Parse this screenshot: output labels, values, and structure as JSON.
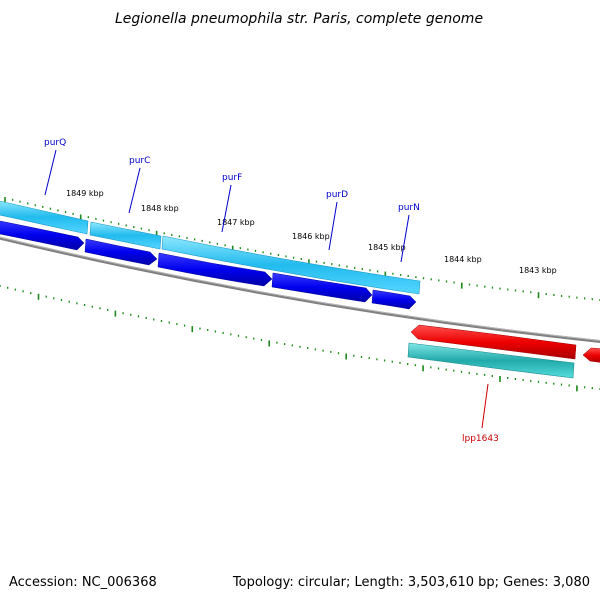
{
  "header": {
    "title": "Legionella pneumophila str. Paris, complete genome"
  },
  "footer": {
    "accession": "Accession: NC_006368",
    "summary": "Topology: circular; Length: 3,503,610 bp; Genes: 3,080"
  },
  "map": {
    "tick_labels": [
      "1849 kbp",
      "1848 kbp",
      "1847 kbp",
      "1846 kbp",
      "1845 kbp",
      "1844 kbp",
      "1843 kbp"
    ],
    "genes": [
      {
        "label": "purQ",
        "strand": "forward"
      },
      {
        "label": "purC",
        "strand": "forward"
      },
      {
        "label": "purF",
        "strand": "forward"
      },
      {
        "label": "purD",
        "strand": "forward"
      },
      {
        "label": "purN",
        "strand": "forward"
      },
      {
        "label": "lpp1643",
        "strand": "reverse"
      }
    ],
    "colors": {
      "forward_cds": "#0000ee",
      "forward_feature": "#33ccff",
      "reverse_cds": "#ee0000",
      "reverse_feature": "#33cccc",
      "backbone": "#808080",
      "ticks": "#1a8a1a",
      "gene_label_forward": "#0000cc",
      "gene_label_reverse": "#cc0000"
    }
  }
}
